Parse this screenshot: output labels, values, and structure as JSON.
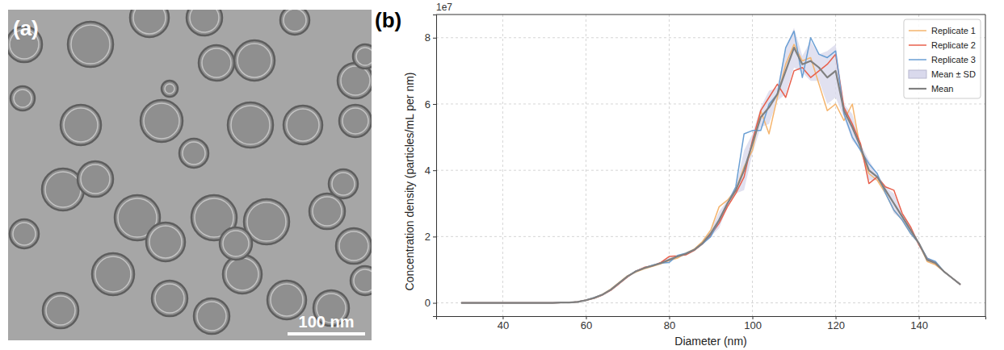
{
  "image_panel": {
    "label": "(a)",
    "scale_bar": "100 nm"
  },
  "chart_label": "(b)",
  "chart_data": {
    "type": "line",
    "x_label": "Diameter (nm)",
    "y_label": "Concentration density (particles/mL per nm)",
    "annotations": [
      {
        "text": "1e7"
      }
    ],
    "x": [
      30,
      32,
      34,
      36,
      38,
      40,
      42,
      44,
      46,
      48,
      50,
      52,
      54,
      56,
      58,
      60,
      62,
      64,
      66,
      68,
      70,
      72,
      74,
      76,
      78,
      80,
      82,
      84,
      86,
      88,
      90,
      92,
      94,
      96,
      98,
      100,
      102,
      104,
      106,
      108,
      110,
      112,
      114,
      116,
      118,
      120,
      122,
      124,
      126,
      128,
      130,
      132,
      134,
      136,
      138,
      140,
      142,
      144,
      146,
      148,
      150
    ],
    "xlim": [
      24,
      156
    ],
    "xticks": [
      40,
      60,
      80,
      100,
      120,
      140
    ],
    "ylim": [
      -0.4,
      8.7
    ],
    "yticks": [
      0,
      2,
      4,
      6,
      8
    ],
    "grid": true,
    "legend": "upper right",
    "series": [
      {
        "name": "Replicate 1",
        "type": "line",
        "color": "#f5b56e",
        "values": [
          0,
          0,
          0,
          0,
          0,
          0,
          0,
          0,
          0,
          0,
          0,
          0,
          0.01,
          0.01,
          0.03,
          0.08,
          0.15,
          0.26,
          0.42,
          0.62,
          0.82,
          0.93,
          1.03,
          1.1,
          1.18,
          1.28,
          1.35,
          1.5,
          1.62,
          1.85,
          2.2,
          2.9,
          3.1,
          3.4,
          4.1,
          4.6,
          5.8,
          5.1,
          6.2,
          7.2,
          7.8,
          7.3,
          7.4,
          6.6,
          5.8,
          6.0,
          5.5,
          6.0,
          4.6,
          3.9,
          3.7,
          3.3,
          2.8,
          2.5,
          2.1,
          1.8,
          1.25,
          1.15,
          0.95,
          0.75,
          0.55
        ]
      },
      {
        "name": "Replicate 2",
        "type": "line",
        "color": "#e8604c",
        "values": [
          0,
          0,
          0,
          0,
          0,
          0,
          0,
          0,
          0,
          0,
          0,
          0,
          0.01,
          0.01,
          0.03,
          0.08,
          0.14,
          0.24,
          0.38,
          0.58,
          0.78,
          0.96,
          1.07,
          1.12,
          1.22,
          1.4,
          1.42,
          1.45,
          1.58,
          1.78,
          2.05,
          2.4,
          2.9,
          3.3,
          3.8,
          4.9,
          5.8,
          6.2,
          6.6,
          6.2,
          7.0,
          7.1,
          6.8,
          7.0,
          7.2,
          7.5,
          5.9,
          5.4,
          4.8,
          3.6,
          3.8,
          3.5,
          3.4,
          2.7,
          2.3,
          1.75,
          1.35,
          1.2,
          0.95,
          0.75,
          0.55
        ]
      },
      {
        "name": "Replicate 3",
        "type": "line",
        "color": "#6a9fd4",
        "values": [
          0,
          0,
          0,
          0,
          0,
          0,
          0,
          0,
          0,
          0,
          0,
          0,
          0.01,
          0.01,
          0.03,
          0.08,
          0.16,
          0.25,
          0.4,
          0.6,
          0.8,
          0.96,
          1.05,
          1.14,
          1.2,
          1.22,
          1.43,
          1.5,
          1.6,
          1.78,
          2.0,
          2.5,
          3.0,
          3.5,
          5.1,
          5.2,
          5.2,
          6.0,
          6.3,
          7.7,
          8.2,
          6.8,
          8.0,
          7.5,
          7.4,
          7.6,
          5.7,
          5.0,
          4.6,
          4.2,
          3.9,
          3.3,
          2.8,
          2.5,
          2.1,
          1.8,
          1.35,
          1.25,
          0.95,
          0.75,
          0.55
        ]
      },
      {
        "name": "Mean ± SD",
        "type": "band",
        "color": "#d9d9ec",
        "values": [
          0,
          0,
          0,
          0,
          0,
          0,
          0,
          0,
          0,
          0,
          0,
          0,
          0.01,
          0.01,
          0.03,
          0.08,
          0.15,
          0.25,
          0.4,
          0.6,
          0.8,
          0.95,
          1.05,
          1.12,
          1.2,
          1.3,
          1.4,
          1.48,
          1.6,
          1.8,
          2.1,
          2.5,
          3.0,
          3.4,
          4.0,
          4.8,
          5.6,
          5.9,
          6.3,
          7.0,
          7.7,
          7.2,
          7.3,
          7.1,
          6.8,
          7.0,
          5.8,
          5.3,
          4.7,
          4.0,
          3.8,
          3.4,
          3.0,
          2.6,
          2.2,
          1.8,
          1.3,
          1.2,
          0.95,
          0.75,
          0.55
        ],
        "errors": [
          0,
          0,
          0,
          0,
          0,
          0,
          0,
          0,
          0,
          0,
          0,
          0,
          0,
          0,
          0,
          0,
          0.01,
          0.01,
          0.02,
          0.02,
          0.02,
          0.02,
          0.02,
          0.02,
          0.02,
          0.06,
          0.04,
          0.03,
          0.02,
          0.04,
          0.1,
          0.25,
          0.1,
          0.1,
          0.6,
          0.3,
          0.3,
          0.5,
          0.2,
          0.7,
          0.6,
          0.25,
          0.6,
          0.4,
          0.8,
          0.8,
          0.2,
          0.4,
          0.1,
          0.3,
          0.1,
          0.1,
          0.3,
          0.1,
          0.1,
          0.03,
          0.05,
          0.05,
          0,
          0,
          0
        ]
      },
      {
        "name": "Mean",
        "type": "line",
        "color": "#808080",
        "values": [
          0,
          0,
          0,
          0,
          0,
          0,
          0,
          0,
          0,
          0,
          0,
          0,
          0.01,
          0.01,
          0.03,
          0.08,
          0.15,
          0.25,
          0.4,
          0.6,
          0.8,
          0.95,
          1.05,
          1.12,
          1.2,
          1.3,
          1.4,
          1.48,
          1.6,
          1.8,
          2.1,
          2.5,
          3.0,
          3.4,
          4.0,
          4.8,
          5.6,
          5.9,
          6.3,
          7.0,
          7.7,
          7.2,
          7.3,
          7.1,
          6.8,
          7.0,
          5.8,
          5.3,
          4.7,
          4.0,
          3.8,
          3.4,
          3.0,
          2.6,
          2.2,
          1.8,
          1.3,
          1.2,
          0.95,
          0.75,
          0.55
        ]
      }
    ]
  }
}
